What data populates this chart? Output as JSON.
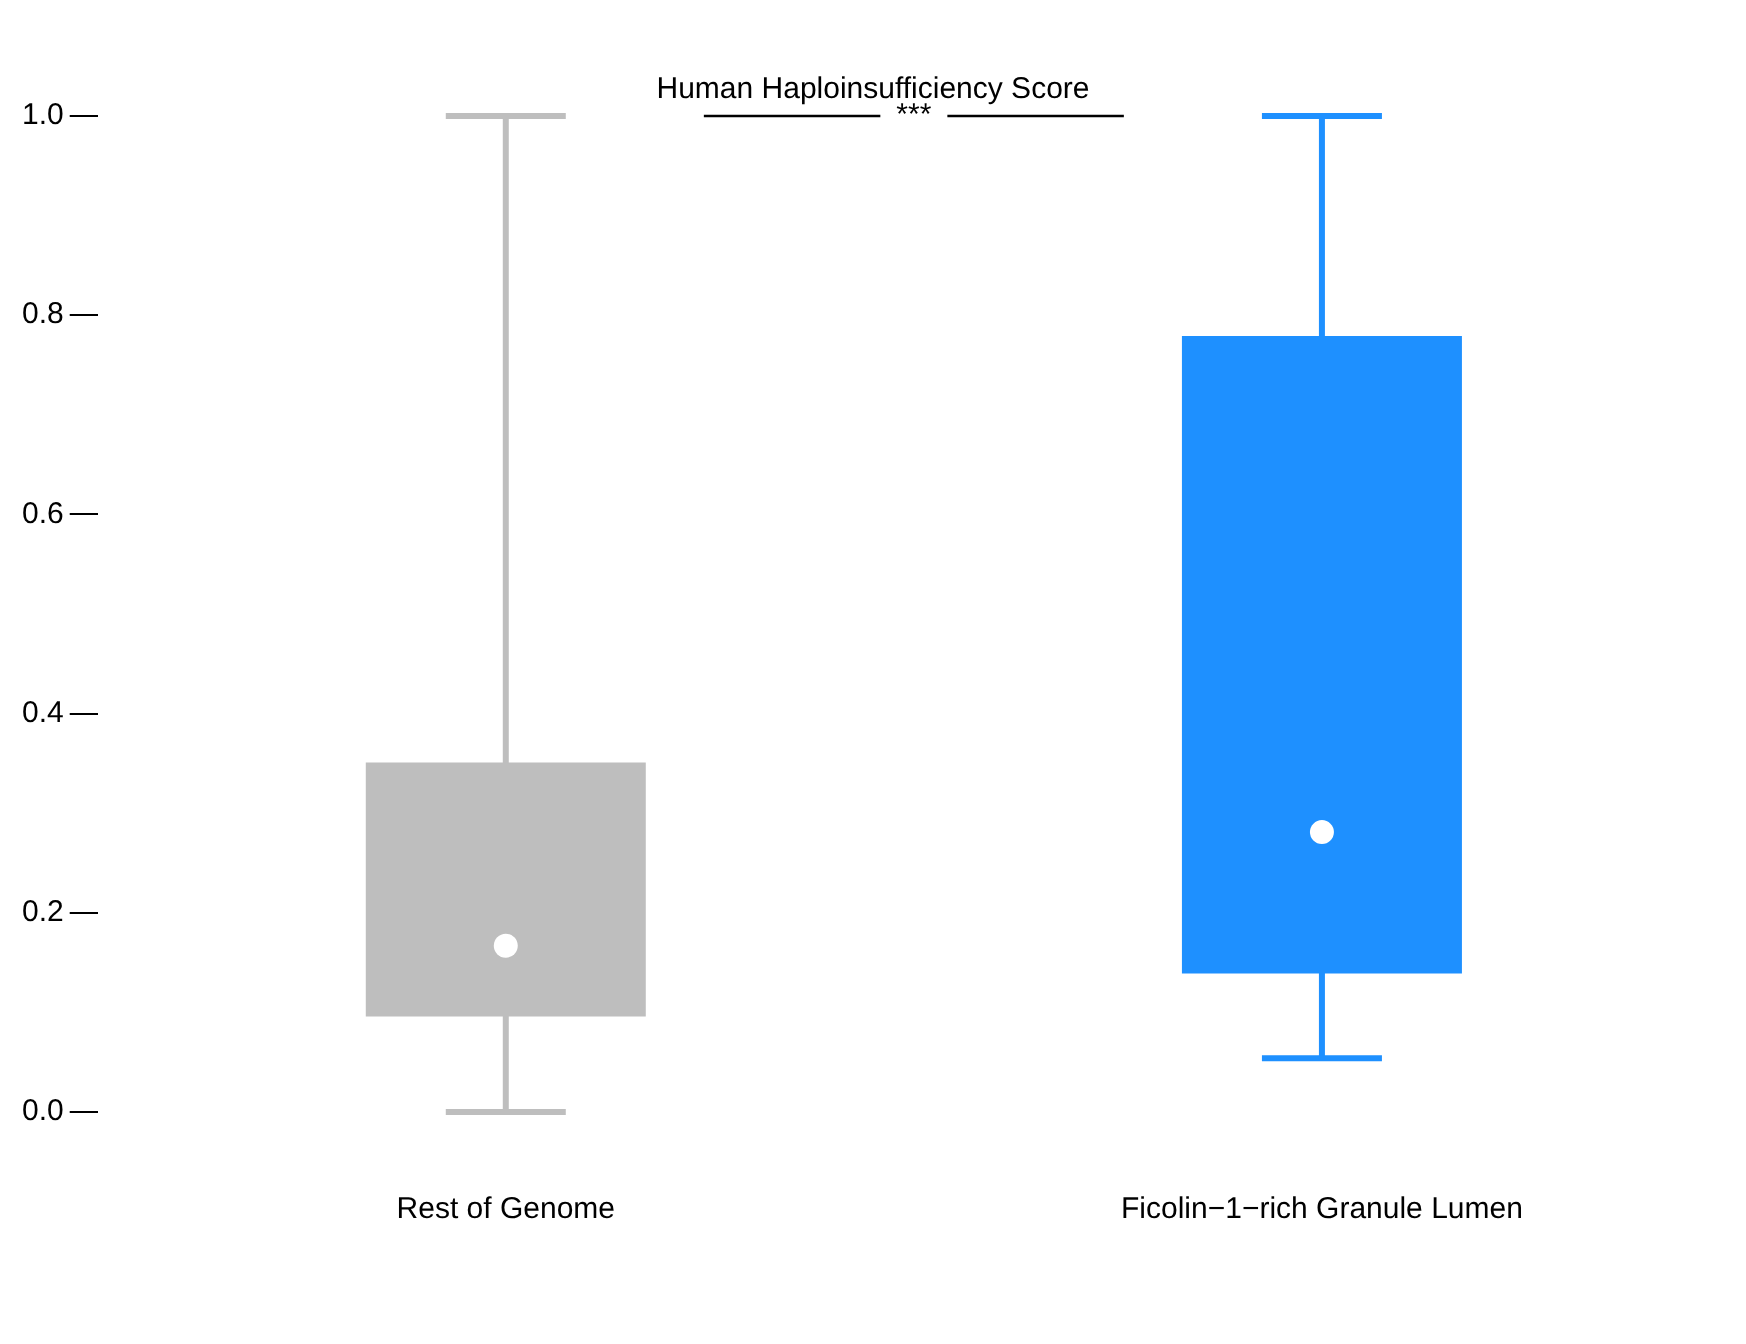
{
  "chart_data": {
    "type": "box",
    "title": "Human Haploinsufficiency Score",
    "categories": [
      "Rest of Genome",
      "Ficolin−1−rich Granule Lumen"
    ],
    "colors": [
      "#bebebe",
      "#1e90ff"
    ],
    "boxes": [
      {
        "low": 0.0,
        "q1": 0.096,
        "median": 0.167,
        "q3": 0.351,
        "high": 1.0
      },
      {
        "low": 0.054,
        "q1": 0.139,
        "median": 0.281,
        "q3": 0.779,
        "high": 1.0
      }
    ],
    "ylim": [
      0,
      1
    ],
    "yticks": [
      {
        "value": 0,
        "label": "0.0"
      },
      {
        "value": 0.2,
        "label": "0.2"
      },
      {
        "value": 0.4,
        "label": "0.4"
      },
      {
        "value": 0.6,
        "label": "0.6"
      },
      {
        "value": 0.8,
        "label": "0.8"
      },
      {
        "value": 1,
        "label": "1.0"
      }
    ],
    "annotations": [
      "***"
    ],
    "grid": false,
    "legend": false
  }
}
